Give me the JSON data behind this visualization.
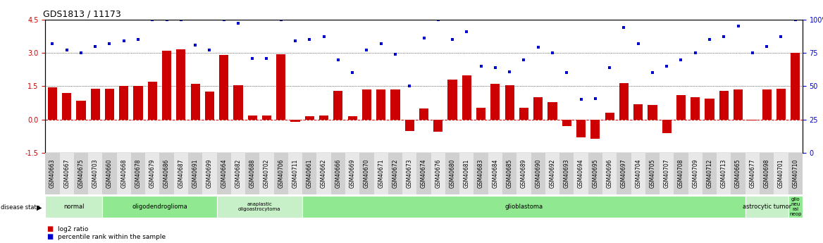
{
  "title": "GDS1813 / 11173",
  "samples": [
    "GSM40663",
    "GSM40667",
    "GSM40675",
    "GSM40703",
    "GSM40660",
    "GSM40668",
    "GSM40678",
    "GSM40679",
    "GSM40686",
    "GSM40687",
    "GSM40691",
    "GSM40699",
    "GSM40664",
    "GSM40682",
    "GSM40688",
    "GSM40702",
    "GSM40706",
    "GSM40711",
    "GSM40661",
    "GSM40662",
    "GSM40666",
    "GSM40669",
    "GSM40670",
    "GSM40671",
    "GSM40672",
    "GSM40673",
    "GSM40674",
    "GSM40676",
    "GSM40680",
    "GSM40681",
    "GSM40683",
    "GSM40684",
    "GSM40685",
    "GSM40689",
    "GSM40690",
    "GSM40692",
    "GSM40693",
    "GSM40694",
    "GSM40695",
    "GSM40696",
    "GSM40697",
    "GSM40704",
    "GSM40705",
    "GSM40707",
    "GSM40708",
    "GSM40709",
    "GSM40712",
    "GSM40713",
    "GSM40665",
    "GSM40677",
    "GSM40698",
    "GSM40701",
    "GSM40710"
  ],
  "log2_ratio": [
    1.45,
    1.2,
    0.85,
    1.4,
    1.4,
    1.5,
    1.5,
    1.7,
    3.1,
    3.15,
    1.6,
    1.25,
    2.9,
    1.55,
    0.2,
    0.2,
    2.95,
    -0.1,
    0.15,
    0.2,
    1.3,
    0.15,
    1.35,
    1.35,
    1.35,
    -0.5,
    0.5,
    -0.55,
    1.8,
    2.0,
    0.55,
    1.6,
    1.55,
    0.55,
    1.0,
    0.8,
    -0.3,
    -0.8,
    -0.85,
    0.3,
    1.65,
    0.7,
    0.65,
    -0.6,
    1.1,
    1.0,
    0.95,
    1.3,
    1.35,
    -0.05,
    1.35,
    1.4,
    3.0
  ],
  "percentile_pct": [
    82,
    77,
    75,
    80,
    82,
    84,
    85,
    100,
    100,
    100,
    81,
    77,
    100,
    97,
    71,
    71,
    100,
    84,
    85,
    87,
    70,
    60,
    77,
    82,
    74,
    50,
    86,
    100,
    85,
    91,
    65,
    64,
    61,
    70,
    79,
    75,
    60,
    40,
    41,
    64,
    94,
    82,
    60,
    65,
    70,
    75,
    85,
    87,
    95,
    75,
    80,
    87,
    100
  ],
  "disease_groups": [
    {
      "label": "normal",
      "start": 0,
      "end": 4,
      "color": "#c8f0c8"
    },
    {
      "label": "oligodendroglioma",
      "start": 4,
      "end": 12,
      "color": "#90e890"
    },
    {
      "label": "anaplastic\noligoastrocytoma",
      "start": 12,
      "end": 18,
      "color": "#c8f0c8"
    },
    {
      "label": "glioblastoma",
      "start": 18,
      "end": 49,
      "color": "#90e890"
    },
    {
      "label": "astrocytic tumor",
      "start": 49,
      "end": 52,
      "color": "#c8f0c8"
    },
    {
      "label": "glio\nneu\nral\nneop",
      "start": 52,
      "end": 53,
      "color": "#90e890"
    }
  ],
  "bar_color": "#cc0000",
  "dot_color": "#0000cc",
  "ylim_left": [
    -1.5,
    4.5
  ],
  "ylim_right": [
    0,
    100
  ],
  "left_yticks": [
    -1.5,
    0.0,
    1.5,
    3.0,
    4.5
  ],
  "right_yticks": [
    0,
    25,
    50,
    75,
    100
  ],
  "right_yticklabels": [
    "0",
    "25",
    "50",
    "75",
    "100%"
  ]
}
